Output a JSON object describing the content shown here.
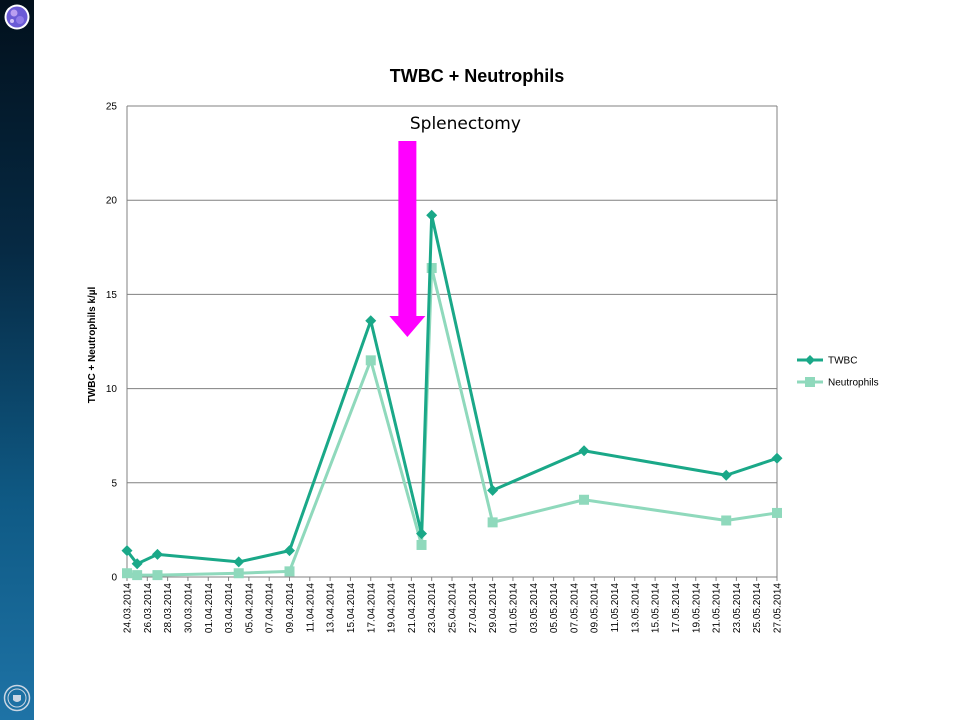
{
  "colors": {
    "twbc": "#1aa888",
    "neutrophils": "#8fd9bc",
    "annotation_arrow": "#ff00ff",
    "grid": "#808080"
  },
  "icons": {
    "top_logo": "globe-logo-icon",
    "bottom_logo": "crest-logo-icon"
  },
  "chart_data": {
    "type": "line",
    "title": "TWBC + Neutrophils",
    "xlabel": "",
    "ylabel": "TWBC + Neutrophils k/µl",
    "ylim": [
      0,
      25
    ],
    "yticks": [
      0,
      5,
      10,
      15,
      20,
      25
    ],
    "grid": true,
    "legend": "right",
    "x_ticks": [
      "24.03.2014",
      "26.03.2014",
      "28.03.2014",
      "30.03.2014",
      "01.04.2014",
      "03.04.2014",
      "05.04.2014",
      "07.04.2014",
      "09.04.2014",
      "11.04.2014",
      "13.04.2014",
      "15.04.2014",
      "17.04.2014",
      "19.04.2014",
      "21.04.2014",
      "23.04.2014",
      "25.04.2014",
      "27.04.2014",
      "29.04.2014",
      "01.05.2014",
      "03.05.2014",
      "05.05.2014",
      "07.05.2014",
      "09.05.2014",
      "11.05.2014",
      "13.05.2014",
      "15.05.2014",
      "17.05.2014",
      "19.05.2014",
      "21.05.2014",
      "23.05.2014",
      "25.05.2014",
      "27.05.2014"
    ],
    "x_start": "24.03.2014",
    "x_end": "27.05.2014",
    "series": [
      {
        "name": "TWBC",
        "marker": "diamond",
        "points": [
          {
            "x": "24.03.2014",
            "y": 1.4
          },
          {
            "x": "25.03.2014",
            "y": 0.7
          },
          {
            "x": "27.03.2014",
            "y": 1.2
          },
          {
            "x": "04.04.2014",
            "y": 0.8
          },
          {
            "x": "09.04.2014",
            "y": 1.4
          },
          {
            "x": "17.04.2014",
            "y": 13.6
          },
          {
            "x": "22.04.2014",
            "y": 2.3
          },
          {
            "x": "23.04.2014",
            "y": 19.2
          },
          {
            "x": "29.04.2014",
            "y": 4.6
          },
          {
            "x": "08.05.2014",
            "y": 6.7
          },
          {
            "x": "22.05.2014",
            "y": 5.4
          },
          {
            "x": "27.05.2014",
            "y": 6.3
          }
        ]
      },
      {
        "name": "Neutrophils",
        "marker": "square",
        "points": [
          {
            "x": "24.03.2014",
            "y": 0.2
          },
          {
            "x": "25.03.2014",
            "y": 0.1
          },
          {
            "x": "27.03.2014",
            "y": 0.1
          },
          {
            "x": "04.04.2014",
            "y": 0.2
          },
          {
            "x": "09.04.2014",
            "y": 0.3
          },
          {
            "x": "17.04.2014",
            "y": 11.5
          },
          {
            "x": "22.04.2014",
            "y": 1.7
          },
          {
            "x": "23.04.2014",
            "y": 16.4
          },
          {
            "x": "29.04.2014",
            "y": 2.9
          },
          {
            "x": "08.05.2014",
            "y": 4.1
          },
          {
            "x": "22.05.2014",
            "y": 3.0
          },
          {
            "x": "27.05.2014",
            "y": 3.4
          }
        ]
      }
    ],
    "annotations": [
      {
        "text": "Splenectomy",
        "x": "21.04.2014",
        "arrow": "down"
      }
    ]
  }
}
